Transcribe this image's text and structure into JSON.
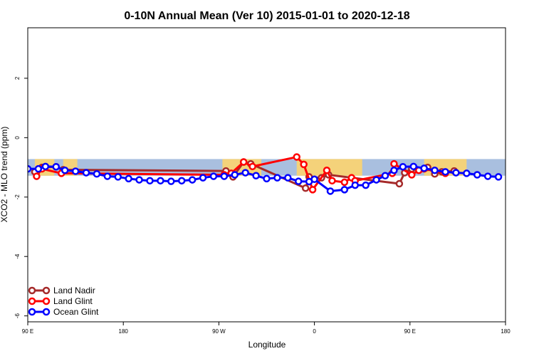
{
  "chart_data": {
    "type": "line",
    "title": "0-10N Annual Mean (Ver 10)   2015-01-01 to 2020-12-18",
    "xlabel": "Longitude",
    "ylabel": "XCO2 - MLO trend (ppm)",
    "xlim": [
      -90,
      180
    ],
    "ylim": [
      -6.2,
      3.7
    ],
    "x_ticks": [
      {
        "value": -90,
        "label": "90 E"
      },
      {
        "value": -36,
        "label": "180"
      },
      {
        "value": 18,
        "label": "90 W"
      },
      {
        "value": 72,
        "label": "0"
      },
      {
        "value": 126,
        "label": "90 E"
      },
      {
        "value": 180,
        "label": "180"
      }
    ],
    "y_ticks": [
      -6,
      -4,
      -2,
      0,
      2
    ],
    "grid": false,
    "legend_position": "bottom-left",
    "band": {
      "y_range": [
        -1.28,
        -0.72
      ],
      "color": "#a9bfdf",
      "land_color": "#f4d27a"
    },
    "land_segments": [
      [
        -86,
        -75
      ],
      [
        -70,
        -62
      ],
      [
        20,
        42
      ],
      [
        62,
        99
      ],
      [
        134,
        158
      ]
    ],
    "series": [
      {
        "name": "Land Nadir",
        "color": "#a52a2a",
        "points": [
          [
            -86,
            -1.15
          ],
          [
            -82,
            -1.0
          ],
          [
            -74,
            -0.98
          ],
          [
            -70,
            -1.08
          ],
          [
            22,
            -1.12
          ],
          [
            26,
            -1.32
          ],
          [
            32,
            -0.82
          ],
          [
            36,
            -0.88
          ],
          [
            67,
            -1.7
          ],
          [
            69,
            -1.32
          ],
          [
            76,
            -1.35
          ],
          [
            80,
            -1.25
          ],
          [
            120,
            -1.55
          ],
          [
            123,
            -1.18
          ],
          [
            127,
            -1.05
          ],
          [
            136,
            -1.0
          ],
          [
            140,
            -1.22
          ],
          [
            144,
            -1.15
          ],
          [
            151,
            -1.12
          ]
        ]
      },
      {
        "name": "Land Glint",
        "color": "#ff0000",
        "points": [
          [
            -85,
            -1.3
          ],
          [
            -82,
            -1.05
          ],
          [
            -71,
            -1.2
          ],
          [
            21,
            -1.25
          ],
          [
            25,
            -1.2
          ],
          [
            32,
            -0.82
          ],
          [
            37,
            -0.97
          ],
          [
            62,
            -0.65
          ],
          [
            66,
            -0.9
          ],
          [
            71,
            -1.75
          ],
          [
            79,
            -1.1
          ],
          [
            82,
            -1.45
          ],
          [
            89,
            -1.5
          ],
          [
            93,
            -1.35
          ],
          [
            95,
            -1.45
          ],
          [
            116,
            -1.2
          ],
          [
            117,
            -0.88
          ],
          [
            127,
            -1.25
          ],
          [
            131,
            -1.1
          ],
          [
            134,
            -1.05
          ],
          [
            146,
            -1.2
          ]
        ]
      },
      {
        "name": "Ocean Glint",
        "color": "#0000ff",
        "points": [
          [
            -90,
            -1.05
          ],
          [
            -84,
            -1.05
          ],
          [
            -80,
            -0.97
          ],
          [
            -74,
            -0.98
          ],
          [
            -69,
            -1.1
          ],
          [
            -63,
            -1.13
          ],
          [
            -57,
            -1.18
          ],
          [
            -51,
            -1.22
          ],
          [
            -45,
            -1.3
          ],
          [
            -39,
            -1.32
          ],
          [
            -33,
            -1.38
          ],
          [
            -27,
            -1.42
          ],
          [
            -21,
            -1.45
          ],
          [
            -15,
            -1.45
          ],
          [
            -9,
            -1.47
          ],
          [
            -3,
            -1.45
          ],
          [
            3,
            -1.42
          ],
          [
            9,
            -1.35
          ],
          [
            15,
            -1.3
          ],
          [
            21,
            -1.3
          ],
          [
            27,
            -1.25
          ],
          [
            33,
            -1.18
          ],
          [
            39,
            -1.28
          ],
          [
            45,
            -1.38
          ],
          [
            51,
            -1.35
          ],
          [
            57,
            -1.35
          ],
          [
            63,
            -1.47
          ],
          [
            69,
            -1.48
          ],
          [
            72,
            -1.4
          ],
          [
            81,
            -1.8
          ],
          [
            89,
            -1.75
          ],
          [
            95,
            -1.6
          ],
          [
            101,
            -1.6
          ],
          [
            107,
            -1.42
          ],
          [
            112,
            -1.28
          ],
          [
            117,
            -1.1
          ],
          [
            122,
            -0.98
          ],
          [
            128,
            -0.97
          ],
          [
            134,
            -1.03
          ],
          [
            140,
            -1.1
          ],
          [
            146,
            -1.15
          ],
          [
            152,
            -1.18
          ],
          [
            158,
            -1.2
          ],
          [
            164,
            -1.25
          ],
          [
            170,
            -1.3
          ],
          [
            176,
            -1.32
          ]
        ]
      }
    ]
  }
}
